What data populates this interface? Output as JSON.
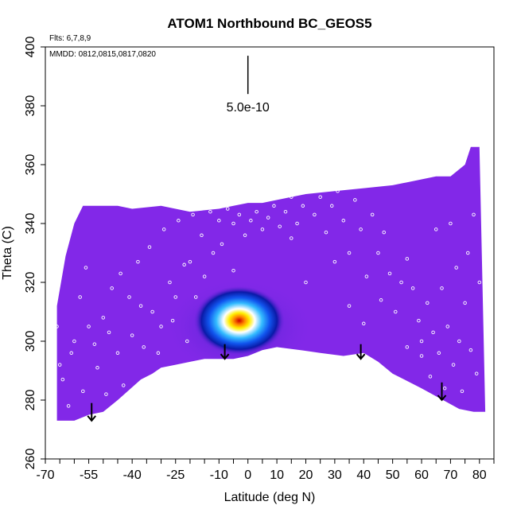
{
  "chart_data": {
    "type": "heatmap",
    "title": "ATOM1 Northbound BC_GEOS5",
    "flights_label": "Flts: 6,7,8,9",
    "dates_label": "MMDD: 0812,0815,0817,0820",
    "xlabel": "Latitude (deg N)",
    "ylabel": "Theta (C)",
    "xlim": [
      -70,
      85
    ],
    "ylim": [
      260,
      400
    ],
    "x_ticks": [
      -70,
      -55,
      -40,
      -25,
      -10,
      0,
      10,
      20,
      30,
      40,
      50,
      60,
      70,
      80
    ],
    "x_minor_ticks": [
      -65,
      -60,
      -50,
      -45,
      -35,
      -30,
      -20,
      -15,
      -5,
      5,
      15,
      25,
      35,
      45,
      55,
      65,
      75,
      85
    ],
    "y_ticks": [
      260,
      280,
      300,
      320,
      340,
      360,
      380,
      400
    ],
    "scale_bar": {
      "label": "5.0e-10",
      "lat": 0,
      "theta_top": 397,
      "theta_bottom": 384
    },
    "base_color": "#8228E8",
    "peak": {
      "lat": -3,
      "theta": 307,
      "value": 5e-10
    },
    "field_top": [
      [
        -66,
        312
      ],
      [
        -63,
        329
      ],
      [
        -60,
        340
      ],
      [
        -57,
        346
      ],
      [
        -45,
        346
      ],
      [
        -40,
        345
      ],
      [
        -30,
        346
      ],
      [
        -20,
        344
      ],
      [
        -10,
        345
      ],
      [
        -5,
        346
      ],
      [
        0,
        347
      ],
      [
        5,
        347
      ],
      [
        10,
        348
      ],
      [
        20,
        350
      ],
      [
        30,
        351
      ],
      [
        40,
        352
      ],
      [
        50,
        353
      ],
      [
        55,
        354
      ],
      [
        60,
        355
      ],
      [
        65,
        356
      ],
      [
        70,
        356
      ],
      [
        75,
        360
      ],
      [
        77,
        366
      ],
      [
        80,
        366
      ]
    ],
    "field_bottom": [
      [
        82,
        276
      ],
      [
        78,
        276
      ],
      [
        73,
        277
      ],
      [
        60,
        284
      ],
      [
        50,
        289
      ],
      [
        45,
        293
      ],
      [
        40,
        296
      ],
      [
        33,
        295
      ],
      [
        25,
        296
      ],
      [
        18,
        297
      ],
      [
        10,
        298
      ],
      [
        5,
        297
      ],
      [
        0,
        295
      ],
      [
        -5,
        294
      ],
      [
        -10,
        294
      ],
      [
        -15,
        294
      ],
      [
        -20,
        293
      ],
      [
        -25,
        292
      ],
      [
        -30,
        291
      ],
      [
        -33,
        289
      ],
      [
        -37,
        287
      ],
      [
        -45,
        280
      ],
      [
        -50,
        276
      ],
      [
        -55,
        275
      ],
      [
        -60,
        273
      ],
      [
        -66,
        273
      ]
    ],
    "arrows": [
      {
        "lat": -54,
        "theta_top": 279,
        "theta_bottom": 273
      },
      {
        "lat": -8,
        "theta_top": 299,
        "theta_bottom": 294
      },
      {
        "lat": 39,
        "theta_top": 299,
        "theta_bottom": 294
      },
      {
        "lat": 67,
        "theta_top": 286,
        "theta_bottom": 280
      }
    ],
    "sample_points": [
      [
        -66,
        305
      ],
      [
        -65,
        292
      ],
      [
        -64,
        287
      ],
      [
        -62,
        278
      ],
      [
        -60,
        300
      ],
      [
        -58,
        315
      ],
      [
        -56,
        325
      ],
      [
        -55,
        305
      ],
      [
        -53,
        299
      ],
      [
        -52,
        291
      ],
      [
        -50,
        308
      ],
      [
        -49,
        282
      ],
      [
        -47,
        318
      ],
      [
        -45,
        296
      ],
      [
        -44,
        323
      ],
      [
        -43,
        285
      ],
      [
        -41,
        315
      ],
      [
        -40,
        302
      ],
      [
        -38,
        327
      ],
      [
        -36,
        298
      ],
      [
        -34,
        332
      ],
      [
        -33,
        310
      ],
      [
        -31,
        296
      ],
      [
        -29,
        338
      ],
      [
        -27,
        320
      ],
      [
        -26,
        307
      ],
      [
        -24,
        341
      ],
      [
        -22,
        326
      ],
      [
        -21,
        300
      ],
      [
        -19,
        343
      ],
      [
        -18,
        315
      ],
      [
        -16,
        336
      ],
      [
        -15,
        322
      ],
      [
        -13,
        344
      ],
      [
        -12,
        330
      ],
      [
        -10,
        341
      ],
      [
        -9,
        333
      ],
      [
        -7,
        345
      ],
      [
        -5,
        340
      ],
      [
        -3,
        343
      ],
      [
        -1,
        336
      ],
      [
        1,
        341
      ],
      [
        3,
        344
      ],
      [
        5,
        338
      ],
      [
        7,
        342
      ],
      [
        9,
        346
      ],
      [
        11,
        339
      ],
      [
        13,
        344
      ],
      [
        15,
        349
      ],
      [
        17,
        340
      ],
      [
        19,
        346
      ],
      [
        21,
        351
      ],
      [
        23,
        343
      ],
      [
        25,
        349
      ],
      [
        27,
        337
      ],
      [
        29,
        346
      ],
      [
        31,
        351
      ],
      [
        33,
        341
      ],
      [
        35,
        330
      ],
      [
        37,
        348
      ],
      [
        39,
        338
      ],
      [
        40,
        306
      ],
      [
        41,
        322
      ],
      [
        43,
        343
      ],
      [
        45,
        330
      ],
      [
        46,
        314
      ],
      [
        47,
        337
      ],
      [
        49,
        323
      ],
      [
        51,
        310
      ],
      [
        53,
        320
      ],
      [
        55,
        298
      ],
      [
        57,
        318
      ],
      [
        59,
        307
      ],
      [
        60,
        295
      ],
      [
        62,
        313
      ],
      [
        63,
        288
      ],
      [
        64,
        303
      ],
      [
        66,
        296
      ],
      [
        67,
        318
      ],
      [
        68,
        284
      ],
      [
        69,
        305
      ],
      [
        70,
        340
      ],
      [
        71,
        292
      ],
      [
        72,
        325
      ],
      [
        73,
        300
      ],
      [
        74,
        283
      ],
      [
        75,
        313
      ],
      [
        76,
        330
      ],
      [
        77,
        297
      ],
      [
        78,
        343
      ],
      [
        79,
        289
      ],
      [
        80,
        320
      ],
      [
        -20,
        327
      ],
      [
        -30,
        305
      ],
      [
        -37,
        312
      ],
      [
        -57,
        283
      ],
      [
        -61,
        296
      ],
      [
        -48,
        303
      ],
      [
        55,
        328
      ],
      [
        60,
        300
      ],
      [
        65,
        338
      ],
      [
        35,
        312
      ],
      [
        20,
        320
      ],
      [
        -25,
        315
      ],
      [
        15,
        335
      ],
      [
        -5,
        324
      ],
      [
        30,
        327
      ]
    ]
  }
}
